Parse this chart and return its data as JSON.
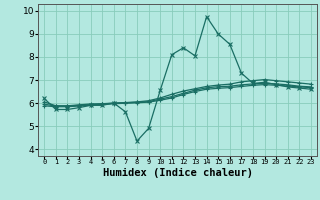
{
  "title": "",
  "xlabel": "Humidex (Indice chaleur)",
  "x_ticks": [
    0,
    1,
    2,
    3,
    4,
    5,
    6,
    7,
    8,
    9,
    10,
    11,
    12,
    13,
    14,
    15,
    16,
    17,
    18,
    19,
    20,
    21,
    22,
    23
  ],
  "ylim": [
    3.7,
    10.3
  ],
  "xlim": [
    -0.5,
    23.5
  ],
  "bg_color": "#b3e8e0",
  "grid_color": "#88ccbb",
  "line_color": "#1a6e64",
  "series": [
    [
      6.2,
      5.72,
      5.72,
      5.8,
      5.9,
      5.9,
      6.0,
      5.62,
      4.35,
      4.9,
      6.55,
      8.1,
      8.4,
      8.05,
      9.75,
      9.0,
      8.55,
      7.3,
      6.85,
      6.9,
      6.8,
      6.7,
      6.65,
      6.6
    ],
    [
      6.05,
      5.88,
      5.88,
      5.92,
      5.96,
      5.97,
      6.0,
      6.02,
      6.05,
      6.1,
      6.22,
      6.38,
      6.52,
      6.62,
      6.72,
      6.78,
      6.82,
      6.92,
      6.97,
      7.02,
      6.97,
      6.92,
      6.87,
      6.82
    ],
    [
      5.95,
      5.87,
      5.87,
      5.9,
      5.93,
      5.96,
      5.99,
      6.01,
      6.03,
      6.06,
      6.17,
      6.28,
      6.42,
      6.56,
      6.66,
      6.71,
      6.73,
      6.79,
      6.83,
      6.86,
      6.83,
      6.79,
      6.73,
      6.7
    ],
    [
      5.88,
      5.84,
      5.84,
      5.87,
      5.91,
      5.94,
      5.97,
      5.99,
      6.01,
      6.04,
      6.12,
      6.22,
      6.37,
      6.5,
      6.6,
      6.64,
      6.67,
      6.72,
      6.77,
      6.8,
      6.77,
      6.74,
      6.7,
      6.67
    ]
  ]
}
